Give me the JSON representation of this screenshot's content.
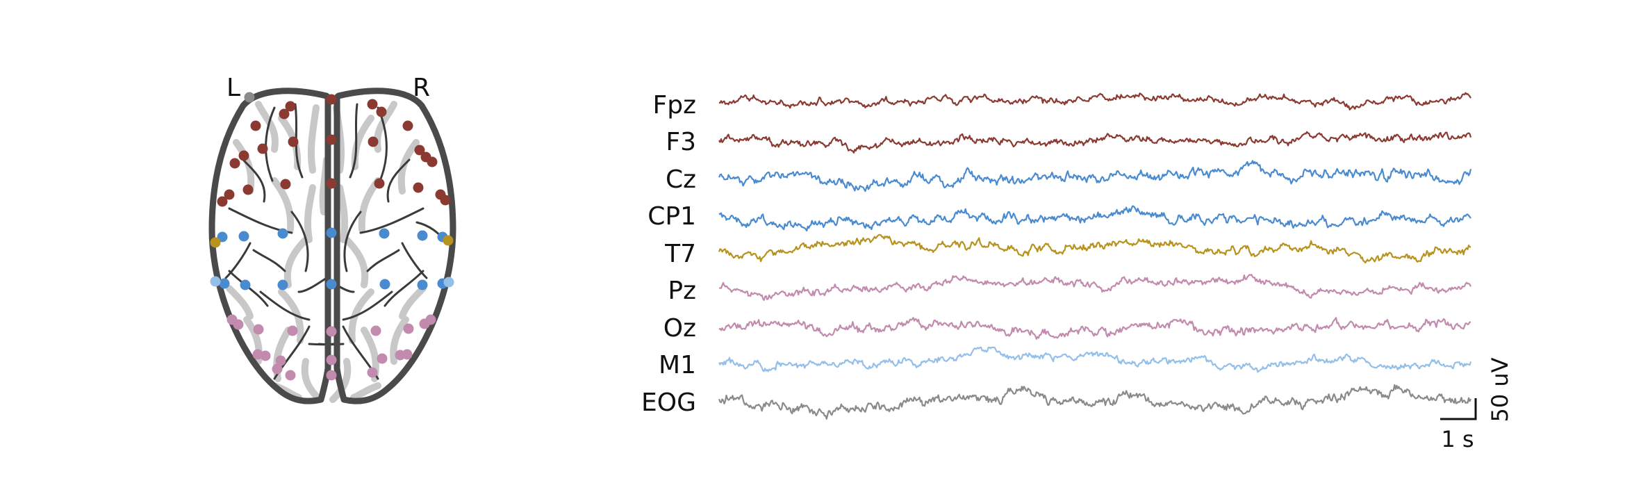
{
  "hemisphere_labels": {
    "left": "L",
    "right": "R"
  },
  "scale_bar": {
    "time": "1 s",
    "amplitude": "50 uV"
  },
  "colors": {
    "frontal": "#8B3A32",
    "central": "#4A8BD0",
    "temporal": "#B8921E",
    "posterior": "#C28BAE",
    "mastoid": "#94BFE8",
    "eog": "#8A8A8A",
    "reference": "#8A8A8A",
    "head_outline": "#4A4A4A",
    "gyri_light": "#C8C8C8",
    "sulci_dark": "#3A3A3A"
  },
  "channels": [
    {
      "name": "Fpz",
      "group": "frontal"
    },
    {
      "name": "F3",
      "group": "frontal"
    },
    {
      "name": "Cz",
      "group": "central"
    },
    {
      "name": "CP1",
      "group": "central"
    },
    {
      "name": "T7",
      "group": "temporal"
    },
    {
      "name": "Pz",
      "group": "posterior"
    },
    {
      "name": "Oz",
      "group": "posterior"
    },
    {
      "name": "M1",
      "group": "mastoid"
    },
    {
      "name": "EOG",
      "group": "eog"
    }
  ]
}
